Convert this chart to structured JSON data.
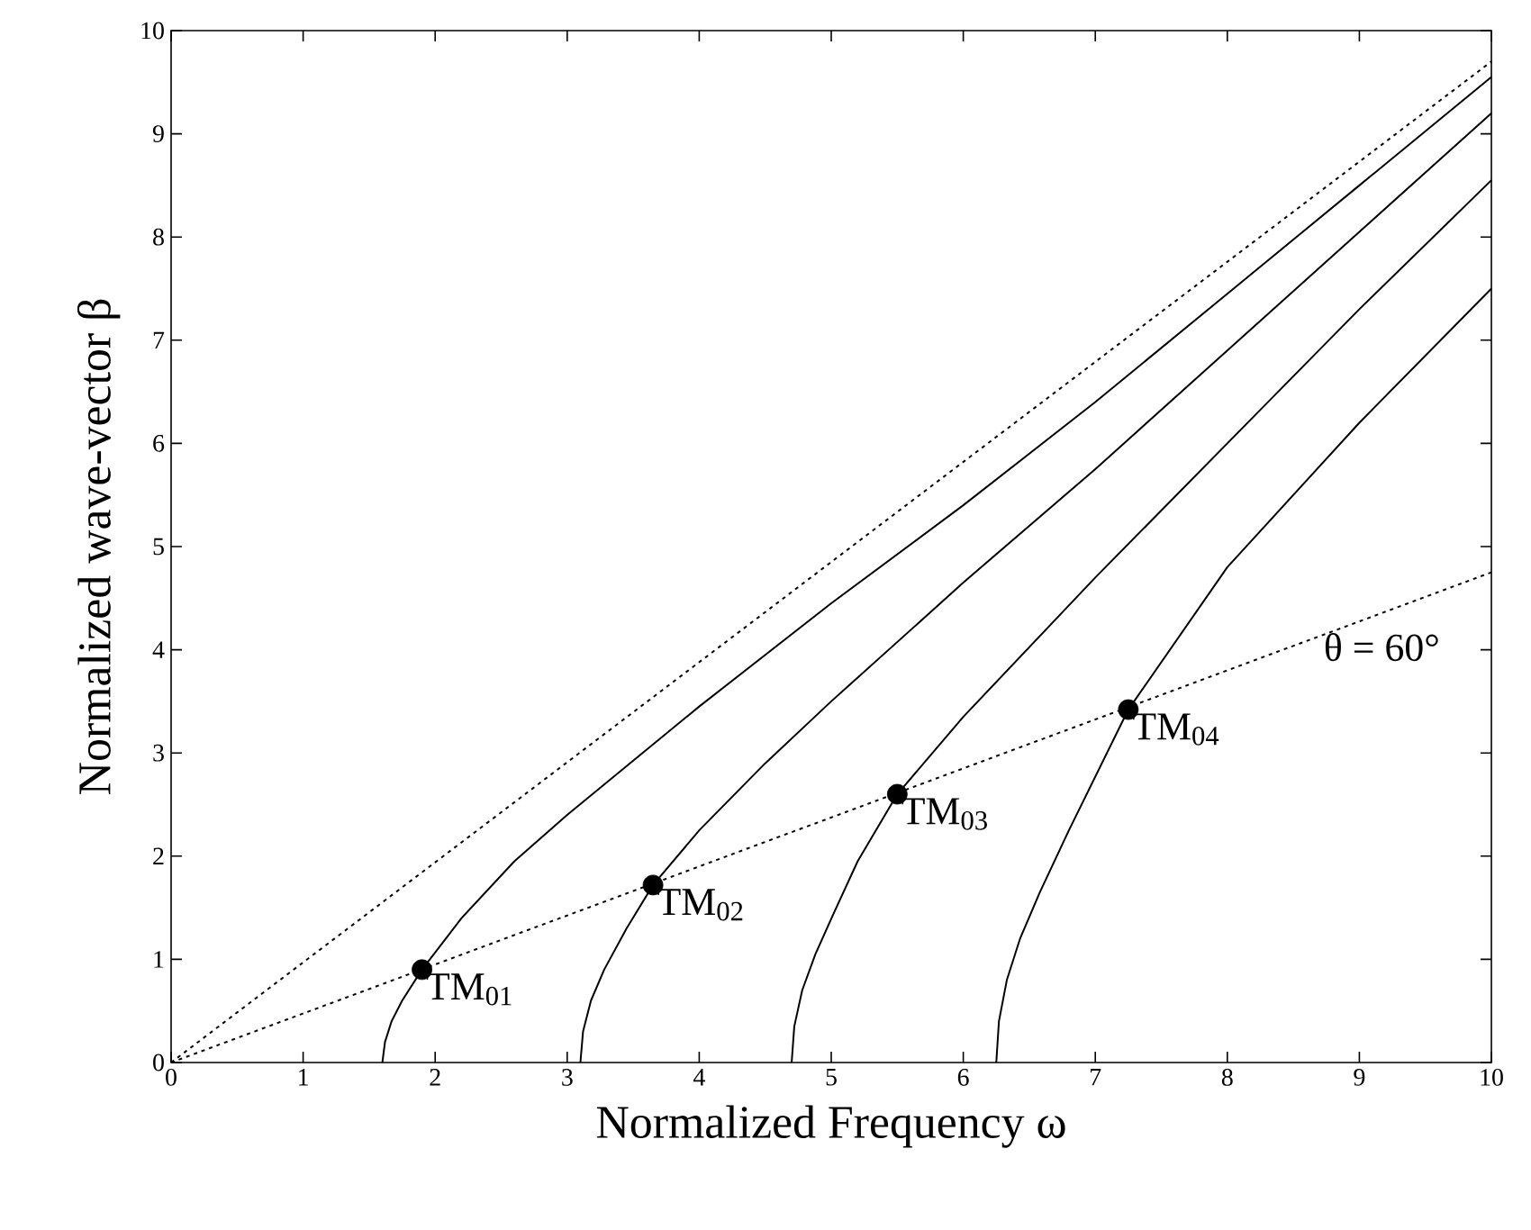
{
  "chart_data": {
    "type": "line",
    "xlabel": "Normalized Frequency  ω",
    "ylabel": "Normalized  wave-vector  β",
    "xlim": [
      0,
      10
    ],
    "ylim": [
      0,
      10
    ],
    "xticks": [
      0,
      1,
      2,
      3,
      4,
      5,
      6,
      7,
      8,
      9,
      10
    ],
    "yticks": [
      0,
      1,
      2,
      3,
      4,
      5,
      6,
      7,
      8,
      9,
      10
    ],
    "grid": false,
    "series": [
      {
        "color": "#000000",
        "line_style": "dotted",
        "marker": "none",
        "x": [
          0,
          10
        ],
        "values": [
          0,
          9.7
        ]
      },
      {
        "color": "#000000",
        "line_style": "dotted",
        "marker": "none",
        "x": [
          0,
          10
        ],
        "values": [
          0,
          4.75
        ]
      },
      {
        "color": "#000000",
        "line_style": "solid",
        "marker": "none",
        "x": [
          1.6,
          1.62,
          1.67,
          1.75,
          1.9,
          2.2,
          2.6,
          3,
          4,
          5,
          6,
          7,
          8,
          9,
          10
        ],
        "values": [
          0,
          0.2,
          0.4,
          0.6,
          0.9,
          1.4,
          1.95,
          2.4,
          3.45,
          4.45,
          5.4,
          6.4,
          7.45,
          8.5,
          9.55
        ]
      },
      {
        "color": "#000000",
        "line_style": "solid",
        "marker": "none",
        "x": [
          3.1,
          3.12,
          3.18,
          3.28,
          3.45,
          3.65,
          4,
          4.5,
          5,
          6,
          7,
          8,
          9,
          10
        ],
        "values": [
          0,
          0.3,
          0.6,
          0.9,
          1.3,
          1.72,
          2.25,
          2.9,
          3.5,
          4.65,
          5.75,
          6.9,
          8.05,
          9.2
        ]
      },
      {
        "color": "#000000",
        "line_style": "solid",
        "marker": "none",
        "x": [
          4.7,
          4.72,
          4.78,
          4.88,
          5.02,
          5.2,
          5.5,
          6,
          7,
          8,
          9,
          10
        ],
        "values": [
          0,
          0.35,
          0.7,
          1.05,
          1.45,
          1.95,
          2.6,
          3.35,
          4.7,
          6.0,
          7.3,
          8.55
        ]
      },
      {
        "color": "#000000",
        "line_style": "solid",
        "marker": "none",
        "x": [
          6.25,
          6.27,
          6.33,
          6.43,
          6.58,
          6.8,
          7.25,
          8,
          9,
          10
        ],
        "values": [
          0,
          0.4,
          0.8,
          1.2,
          1.65,
          2.25,
          3.42,
          4.8,
          6.2,
          7.5
        ]
      },
      {
        "type": "scatter",
        "color": "#000000",
        "marker": "circle",
        "x": [
          1.9,
          3.65,
          5.5,
          7.25
        ],
        "values": [
          0.9,
          1.72,
          2.6,
          3.42
        ]
      }
    ],
    "annotations": [
      {
        "text": "TM$_{01}$",
        "x": 1.9,
        "y": 0.9
      },
      {
        "text": "TM$_{02}$",
        "x": 3.65,
        "y": 1.72
      },
      {
        "text": "TM$_{03}$",
        "x": 5.5,
        "y": 2.6
      },
      {
        "text": "TM$_{04}$",
        "x": 7.25,
        "y": 3.42
      },
      {
        "text": "θ = 60°",
        "x": 8.7,
        "y": 4.2
      }
    ]
  }
}
